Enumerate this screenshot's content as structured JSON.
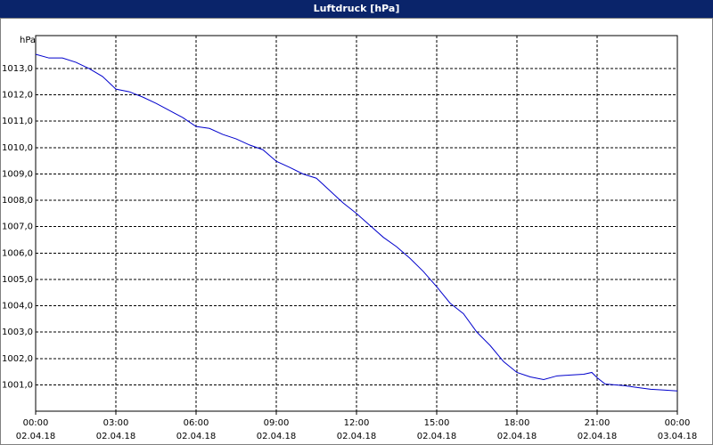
{
  "chart_data": {
    "type": "line",
    "title": "Luftdruck [hPa]",
    "y_unit": "hPa",
    "x": [
      0,
      0.5,
      1,
      1.5,
      2,
      2.5,
      3,
      3.5,
      4,
      4.5,
      5,
      5.5,
      6,
      6.5,
      7,
      7.5,
      8,
      8.5,
      9,
      9.5,
      10,
      10.5,
      11,
      11.5,
      12,
      12.5,
      13,
      13.5,
      14,
      14.5,
      15,
      15.5,
      16,
      16.5,
      17,
      17.5,
      18,
      18.5,
      19,
      19.5,
      20,
      20.5,
      20.8,
      21,
      21.3,
      22,
      22.5,
      23,
      23.5,
      24
    ],
    "series": [
      {
        "name": "Luftdruck",
        "color": "#0000cc",
        "values": [
          1013.54,
          1013.4,
          1013.4,
          1013.24,
          1013.0,
          1012.7,
          1012.22,
          1012.12,
          1011.92,
          1011.68,
          1011.41,
          1011.14,
          1010.8,
          1010.73,
          1010.5,
          1010.33,
          1010.1,
          1009.92,
          1009.48,
          1009.25,
          1009.0,
          1008.84,
          1008.37,
          1007.9,
          1007.5,
          1007.05,
          1006.6,
          1006.24,
          1005.8,
          1005.3,
          1004.72,
          1004.1,
          1003.7,
          1003.0,
          1002.49,
          1001.88,
          1001.47,
          1001.3,
          1001.2,
          1001.34,
          1001.37,
          1001.4,
          1001.47,
          1001.27,
          1001.03,
          1000.97,
          1000.9,
          1000.83,
          1000.8,
          1000.77
        ]
      }
    ],
    "xlim": [
      0,
      24
    ],
    "ylim": [
      1000,
      1014.25
    ],
    "xticks": [
      {
        "value": 0,
        "label": [
          "00:00",
          "02.04.18"
        ]
      },
      {
        "value": 3,
        "label": [
          "03:00",
          "02.04.18"
        ]
      },
      {
        "value": 6,
        "label": [
          "06:00",
          "02.04.18"
        ]
      },
      {
        "value": 9,
        "label": [
          "09:00",
          "02.04.18"
        ]
      },
      {
        "value": 12,
        "label": [
          "12:00",
          "02.04.18"
        ]
      },
      {
        "value": 15,
        "label": [
          "15:00",
          "02.04.18"
        ]
      },
      {
        "value": 18,
        "label": [
          "18:00",
          "02.04.18"
        ]
      },
      {
        "value": 21,
        "label": [
          "21:00",
          "02.04.18"
        ]
      },
      {
        "value": 24,
        "label": [
          "00:00",
          "03.04.18"
        ]
      }
    ],
    "yticks": [
      {
        "value": 1001,
        "label": "1001,0"
      },
      {
        "value": 1002,
        "label": "1002,0"
      },
      {
        "value": 1003,
        "label": "1003,0"
      },
      {
        "value": 1004,
        "label": "1004,0"
      },
      {
        "value": 1005,
        "label": "1005,0"
      },
      {
        "value": 1006,
        "label": "1006,0"
      },
      {
        "value": 1007,
        "label": "1007,0"
      },
      {
        "value": 1008,
        "label": "1008,0"
      },
      {
        "value": 1009,
        "label": "1009,0"
      },
      {
        "value": 1010,
        "label": "1010,0"
      },
      {
        "value": 1011,
        "label": "1011,0"
      },
      {
        "value": 1012,
        "label": "1012,0"
      },
      {
        "value": 1013,
        "label": "1013,0"
      }
    ],
    "grid": true
  }
}
